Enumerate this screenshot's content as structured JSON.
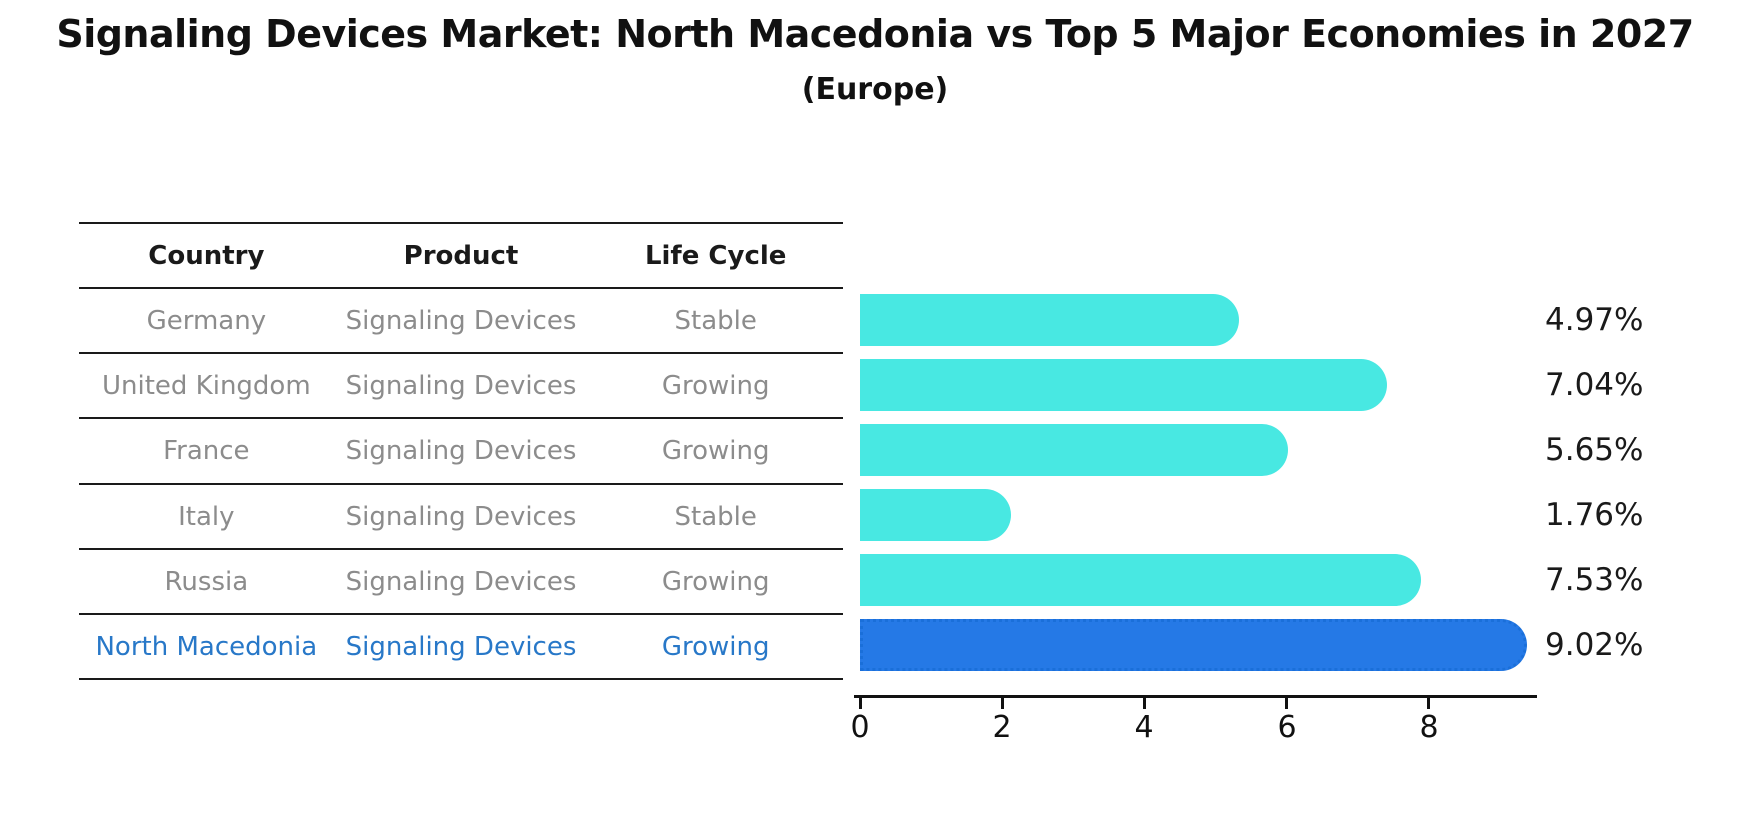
{
  "page": {
    "title": "Signaling Devices Market: North Macedonia vs Top 5 Major Economies in 2027",
    "subtitle": "(Europe)"
  },
  "table": {
    "headers": [
      "Country",
      "Product",
      "Life Cycle"
    ],
    "rows": [
      {
        "country": "Germany",
        "product": "Signaling Devices",
        "life_cycle": "Stable",
        "highlight": false
      },
      {
        "country": "United Kingdom",
        "product": "Signaling Devices",
        "life_cycle": "Growing",
        "highlight": false
      },
      {
        "country": "France",
        "product": "Signaling Devices",
        "life_cycle": "Growing",
        "highlight": false
      },
      {
        "country": "Italy",
        "product": "Signaling Devices",
        "life_cycle": "Stable",
        "highlight": false
      },
      {
        "country": "Russia",
        "product": "Signaling Devices",
        "life_cycle": "Growing",
        "highlight": false
      },
      {
        "country": "North Macedonia",
        "product": "Signaling Devices",
        "life_cycle": "Growing",
        "highlight": true
      }
    ],
    "colors": {
      "header_text": "#1a1a1a",
      "row_text": "#8c8c8c",
      "highlight_text": "#2878c8",
      "rule": "#1a1a1a"
    }
  },
  "chart_data": {
    "type": "bar",
    "orientation": "horizontal",
    "title": "Signaling Devices Market: North Macedonia vs Top 5 Major Economies in 2027",
    "subtitle": "(Europe)",
    "categories": [
      "Germany",
      "United Kingdom",
      "France",
      "Italy",
      "Russia",
      "North Macedonia"
    ],
    "values": [
      4.97,
      7.04,
      5.65,
      1.76,
      7.53,
      9.02
    ],
    "value_labels": [
      "4.97%",
      "7.04%",
      "5.65%",
      "1.76%",
      "7.53%",
      "9.02%"
    ],
    "xlabel": "",
    "ylabel": "",
    "xticks": [
      0,
      2,
      4,
      6,
      8
    ],
    "xlim": [
      0,
      9.5
    ],
    "grid": false,
    "legend": false,
    "bar_color": "#48e8e2",
    "highlight_bar_color": "#2579e6",
    "highlight_border_color": "#1a6fd9",
    "highlight_index": 5
  }
}
